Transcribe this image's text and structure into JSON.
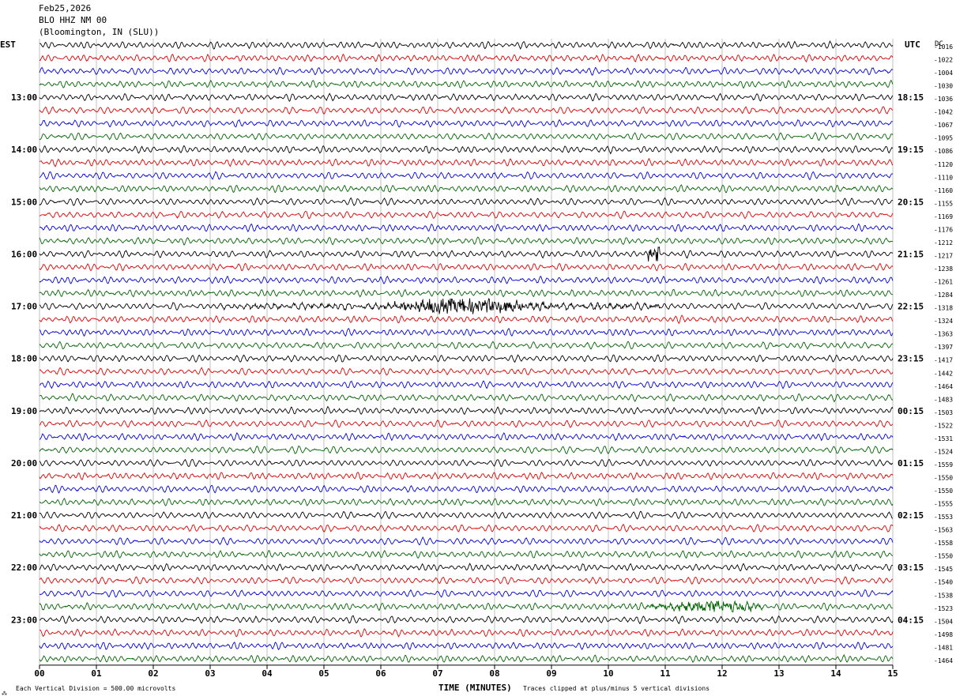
{
  "header": {
    "date": "Feb25,2026",
    "station": "BLO HHZ NM 00",
    "location": "(Bloomington, IN (SLU))"
  },
  "left_tz": "EST",
  "right_tz": "UTC",
  "dc_label": "DC",
  "footer": {
    "scale_note": "Each Vertical Division =  500.00 microvolts",
    "xlabel": "TIME (MINUTES)",
    "clip_note": "Traces clipped at plus/minus 5 vertical divisions"
  },
  "colors": {
    "trace_cycle": [
      "#000000",
      "#e00000",
      "#0000dd",
      "#006400"
    ],
    "grid": "#999999"
  },
  "chart_data": {
    "type": "line",
    "title": "BLO HHZ NM 00",
    "xlabel": "TIME (MINUTES)",
    "xlim": [
      0,
      15
    ],
    "x_ticks": [
      "00",
      "01",
      "02",
      "03",
      "04",
      "05",
      "06",
      "07",
      "08",
      "09",
      "10",
      "11",
      "12",
      "13",
      "14",
      "15"
    ],
    "minutes_per_line": 15,
    "lines_per_hour": 4,
    "left_hour_labels": [
      "13:00",
      "14:00",
      "15:00",
      "16:00",
      "17:00",
      "18:00",
      "19:00",
      "20:00",
      "21:00",
      "22:00",
      "23:00"
    ],
    "right_hour_labels": [
      "18:15",
      "19:15",
      "20:15",
      "21:15",
      "22:15",
      "23:15",
      "00:15",
      "01:15",
      "02:15",
      "03:15",
      "04:15"
    ],
    "dc_offsets": [
      "-1016",
      "-1022",
      "-1004",
      "-1030",
      "-1036",
      "-1042",
      "-1067",
      "-1095",
      "-1086",
      "-1120",
      "-1110",
      "-1160",
      "-1155",
      "-1169",
      "-1176",
      "-1212",
      "-1217",
      "-1238",
      "-1261",
      "-1284",
      "-1318",
      "-1324",
      "-1363",
      "-1397",
      "-1417",
      "-1442",
      "-1464",
      "-1483",
      "-1503",
      "-1522",
      "-1531",
      "-1524",
      "-1559",
      "-1550",
      "-1550",
      "-1555",
      "-1553",
      "-1563",
      "-1558",
      "-1550",
      "-1545",
      "-1540",
      "-1538",
      "-1523",
      "-1504",
      "-1498",
      "-1481",
      "-1464"
    ],
    "events": [
      {
        "trace": 20,
        "start_min": 3.2,
        "end_min": 10.9,
        "peak_min": 7.5,
        "amplitude": "high"
      },
      {
        "trace": 16,
        "start_min": 10.7,
        "end_min": 10.9,
        "peak_min": 10.8,
        "amplitude": "spike"
      },
      {
        "trace": 43,
        "start_min": 10.0,
        "end_min": 12.7,
        "peak_min": 11.8,
        "amplitude": "medium"
      }
    ],
    "unit": "microvolts",
    "units_per_division": 500.0
  }
}
